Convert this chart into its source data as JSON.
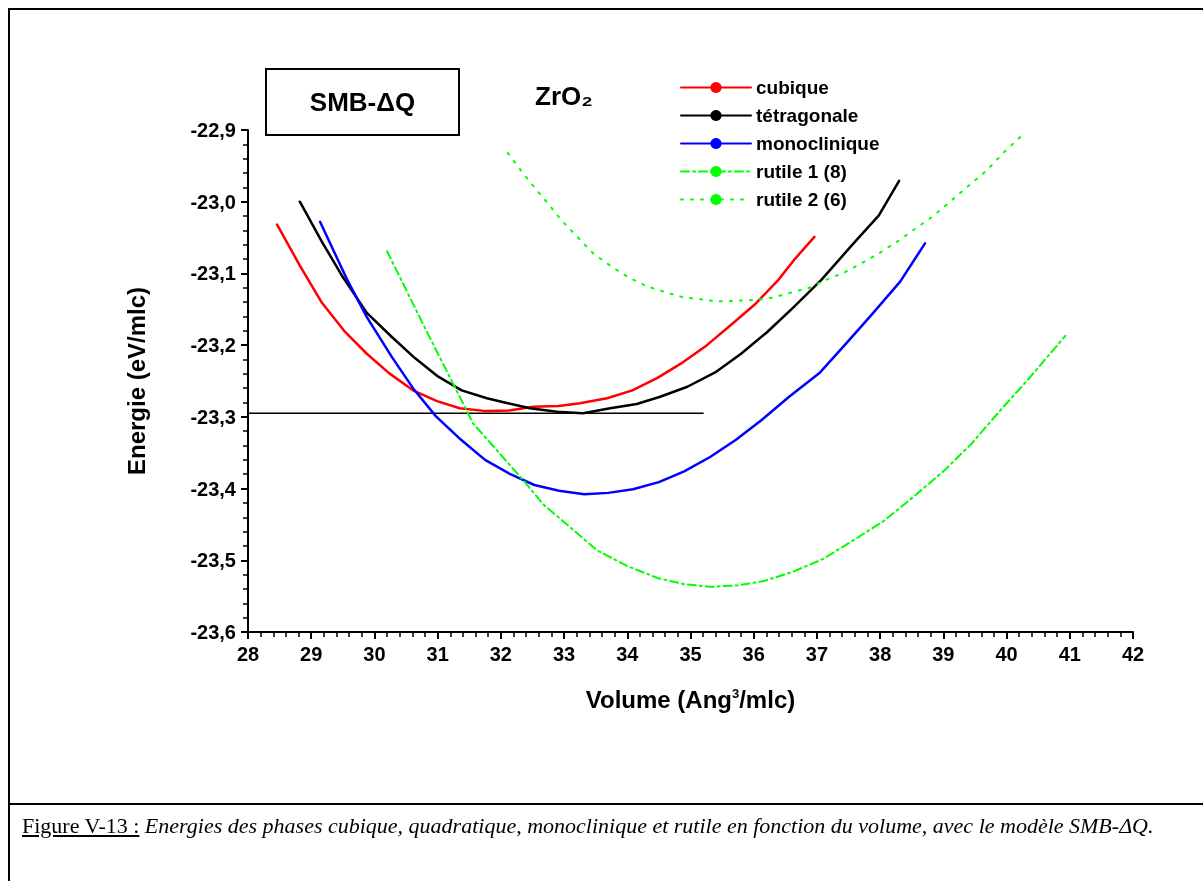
{
  "chart_data": {
    "type": "line",
    "title": "ZrO₂",
    "xlabel": "Volume (Ang$^{3}$/mlc)",
    "ylabel": "Energie (eV/mlc)",
    "annotations": [
      "SMB-ΔQ",
      "Figure V-13 :",
      "Energies des phases cubique, quadratique, monoclinique et rutile en fonction du volume, avec le modèle SMB-ΔQ."
    ],
    "xlim": [
      28,
      42
    ],
    "xticks": [
      28,
      29,
      30,
      31,
      32,
      33,
      34,
      35,
      36,
      37,
      38,
      39,
      40,
      41,
      42
    ],
    "ylim": [
      -23.6,
      -22.9
    ],
    "yticks": [
      {
        "value": -23.6,
        "label": "-23,6"
      },
      {
        "value": -23.5,
        "label": "-23,5"
      },
      {
        "value": -23.4,
        "label": "-23,4"
      },
      {
        "value": -23.3,
        "label": "-23,3"
      },
      {
        "value": -23.2,
        "label": "-23,2"
      },
      {
        "value": -23.1,
        "label": "-23,1"
      },
      {
        "value": -23.0,
        "label": "-23,0"
      },
      {
        "value": -22.9,
        "label": "-22,9"
      }
    ],
    "grid": false,
    "legend": "top right",
    "marker": "none",
    "series": [
      {
        "name": "cubique",
        "color": "#ff0000",
        "line_style": "solid",
        "x": [
          28.46,
          28.82,
          29.17,
          29.52,
          29.88,
          30.23,
          30.61,
          30.99,
          31.35,
          31.77,
          32.13,
          32.51,
          32.91,
          33.25,
          33.68,
          34.08,
          34.47,
          34.88,
          35.26,
          35.69,
          36.02,
          36.39,
          36.65,
          36.96
        ],
        "values": [
          -23.032,
          -23.089,
          -23.141,
          -23.18,
          -23.212,
          -23.239,
          -23.263,
          -23.278,
          -23.288,
          -23.292,
          -23.291,
          -23.286,
          -23.285,
          -23.281,
          -23.274,
          -23.263,
          -23.246,
          -23.224,
          -23.2,
          -23.168,
          -23.143,
          -23.109,
          -23.08,
          -23.049
        ]
      },
      {
        "name": "tétragonale",
        "color": "#000000",
        "line_style": "solid",
        "x": [
          28.82,
          29.17,
          29.5,
          29.88,
          30.28,
          30.64,
          31.01,
          31.38,
          31.78,
          32.11,
          32.46,
          32.89,
          33.3,
          33.73,
          34.15,
          34.52,
          34.95,
          35.39,
          35.8,
          36.21,
          36.62,
          37.07,
          37.54,
          37.98,
          38.3
        ],
        "values": [
          -23.0,
          -23.056,
          -23.105,
          -23.155,
          -23.189,
          -23.218,
          -23.244,
          -23.263,
          -23.274,
          -23.281,
          -23.288,
          -23.293,
          -23.295,
          -23.288,
          -23.282,
          -23.272,
          -23.258,
          -23.238,
          -23.212,
          -23.182,
          -23.148,
          -23.109,
          -23.062,
          -23.019,
          -22.971
        ]
      },
      {
        "name": "monoclinique",
        "color": "#0000ff",
        "line_style": "solid",
        "x": [
          29.14,
          29.57,
          29.88,
          30.28,
          30.61,
          30.97,
          31.37,
          31.75,
          32.15,
          32.53,
          32.92,
          33.32,
          33.7,
          34.09,
          34.5,
          34.9,
          35.31,
          35.72,
          36.13,
          36.56,
          37.05,
          37.46,
          37.87,
          38.32,
          38.71
        ],
        "values": [
          -23.028,
          -23.109,
          -23.161,
          -23.217,
          -23.26,
          -23.299,
          -23.332,
          -23.36,
          -23.38,
          -23.395,
          -23.403,
          -23.408,
          -23.406,
          -23.401,
          -23.391,
          -23.376,
          -23.356,
          -23.332,
          -23.304,
          -23.272,
          -23.238,
          -23.198,
          -23.157,
          -23.111,
          -23.058
        ]
      },
      {
        "name": "rutile 1 (8)",
        "color": "#00ff00",
        "line_style": "dashed",
        "x": [
          30.2,
          30.76,
          31.2,
          31.56,
          32.07,
          32.38,
          32.67,
          33.11,
          33.52,
          34.0,
          34.49,
          34.88,
          35.31,
          35.74,
          36.16,
          36.62,
          37.1,
          37.56,
          38.06,
          38.52,
          39.0,
          39.44,
          39.88,
          40.31,
          40.93
        ],
        "values": [
          -23.069,
          -23.169,
          -23.246,
          -23.309,
          -23.36,
          -23.391,
          -23.422,
          -23.455,
          -23.486,
          -23.508,
          -23.525,
          -23.533,
          -23.537,
          -23.535,
          -23.529,
          -23.516,
          -23.498,
          -23.473,
          -23.445,
          -23.412,
          -23.376,
          -23.338,
          -23.293,
          -23.251,
          -23.187
        ]
      },
      {
        "name": "rutile 2 (6)",
        "color": "#00ff00",
        "line_style": "dotted",
        "x": [
          32.11,
          32.34,
          32.54,
          32.75,
          32.97,
          33.21,
          33.46,
          33.76,
          34.01,
          34.31,
          34.6,
          34.87,
          35.15,
          35.44,
          35.76,
          36.02,
          36.29,
          36.58,
          36.88,
          37.14,
          37.43,
          37.7,
          37.98,
          38.28,
          38.55,
          38.84,
          39.12,
          39.41,
          39.69,
          39.96,
          40.25
        ],
        "values": [
          -22.932,
          -22.959,
          -22.981,
          -23.003,
          -23.027,
          -23.049,
          -23.072,
          -23.091,
          -23.105,
          -23.118,
          -23.126,
          -23.133,
          -23.136,
          -23.139,
          -23.138,
          -23.137,
          -23.134,
          -23.127,
          -23.12,
          -23.109,
          -23.099,
          -23.086,
          -23.072,
          -23.055,
          -23.038,
          -23.02,
          -22.999,
          -22.977,
          -22.956,
          -22.931,
          -22.907
        ]
      },
      {
        "color": "#000000",
        "line_style": "solid",
        "x": [
          28,
          35.2
        ],
        "values": [
          -23.295,
          -23.295
        ]
      }
    ]
  }
}
